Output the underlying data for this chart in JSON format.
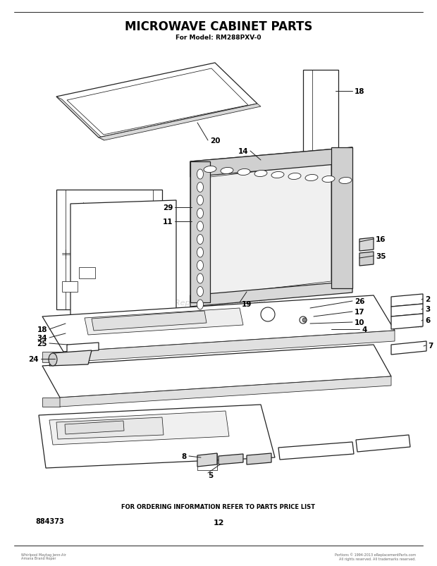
{
  "title": "MICROWAVE CABINET PARTS",
  "subtitle": "For Model: RM288PXV-0",
  "footer_text": "FOR ORDERING INFORMATION REFER TO PARTS PRICE LIST",
  "part_number_bottom_left": "884373",
  "page_number": "12",
  "watermark": "eReplacementParts.com",
  "background_color": "#ffffff",
  "line_color": "#222222",
  "text_color": "#000000",
  "title_fontsize": 12,
  "subtitle_fontsize": 6.5,
  "label_fontsize": 7.5,
  "footer_fontsize": 6,
  "small_text_fontsize": 5
}
